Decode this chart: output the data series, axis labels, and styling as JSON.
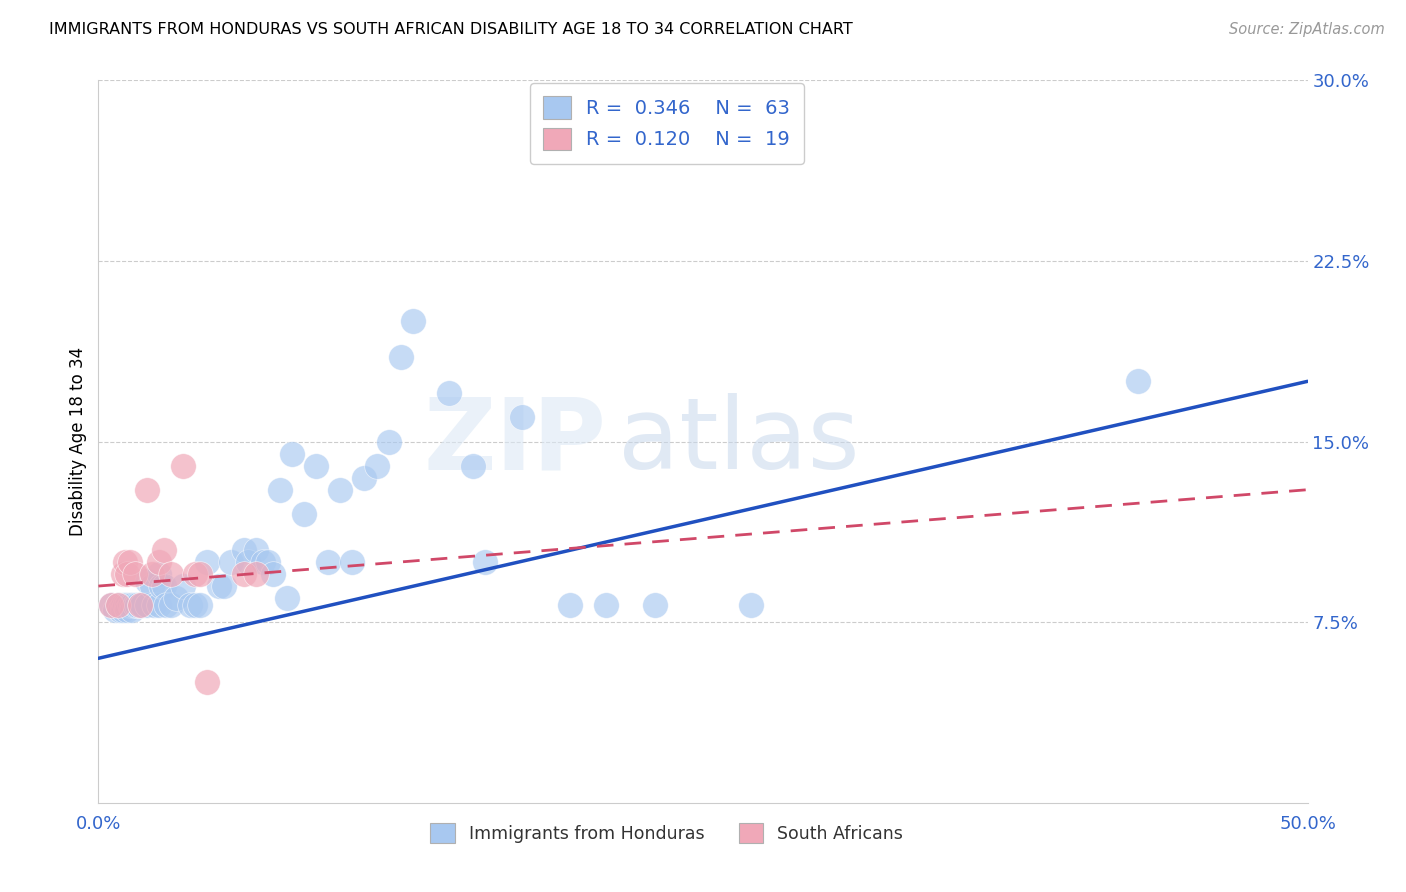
{
  "title": "IMMIGRANTS FROM HONDURAS VS SOUTH AFRICAN DISABILITY AGE 18 TO 34 CORRELATION CHART",
  "source": "Source: ZipAtlas.com",
  "ylabel": "Disability Age 18 to 34",
  "xlim": [
    0.0,
    0.5
  ],
  "ylim": [
    0.0,
    0.3
  ],
  "yticks": [
    0.075,
    0.15,
    0.225,
    0.3
  ],
  "yticklabels": [
    "7.5%",
    "15.0%",
    "22.5%",
    "30.0%"
  ],
  "legend1_R": "0.346",
  "legend1_N": "63",
  "legend2_R": "0.120",
  "legend2_N": "19",
  "blue_color": "#a8c8f0",
  "pink_color": "#f0a8b8",
  "line_blue": "#2050c0",
  "line_pink": "#d04868",
  "watermark_zip": "ZIP",
  "watermark_atlas": "atlas",
  "blue_scatter_x": [
    0.005,
    0.007,
    0.008,
    0.009,
    0.01,
    0.01,
    0.011,
    0.012,
    0.012,
    0.013,
    0.014,
    0.014,
    0.015,
    0.016,
    0.017,
    0.018,
    0.02,
    0.02,
    0.022,
    0.023,
    0.025,
    0.025,
    0.026,
    0.027,
    0.028,
    0.03,
    0.032,
    0.035,
    0.038,
    0.04,
    0.042,
    0.045,
    0.05,
    0.052,
    0.055,
    0.06,
    0.062,
    0.065,
    0.068,
    0.07,
    0.072,
    0.075,
    0.078,
    0.08,
    0.085,
    0.09,
    0.095,
    0.1,
    0.105,
    0.11,
    0.115,
    0.12,
    0.125,
    0.13,
    0.145,
    0.155,
    0.16,
    0.175,
    0.195,
    0.21,
    0.23,
    0.27,
    0.43
  ],
  "blue_scatter_y": [
    0.082,
    0.08,
    0.082,
    0.08,
    0.082,
    0.08,
    0.082,
    0.082,
    0.08,
    0.082,
    0.082,
    0.08,
    0.082,
    0.082,
    0.082,
    0.082,
    0.092,
    0.082,
    0.09,
    0.082,
    0.095,
    0.082,
    0.09,
    0.09,
    0.082,
    0.082,
    0.085,
    0.09,
    0.082,
    0.082,
    0.082,
    0.1,
    0.09,
    0.09,
    0.1,
    0.105,
    0.1,
    0.105,
    0.1,
    0.1,
    0.095,
    0.13,
    0.085,
    0.145,
    0.12,
    0.14,
    0.1,
    0.13,
    0.1,
    0.135,
    0.14,
    0.15,
    0.185,
    0.2,
    0.17,
    0.14,
    0.1,
    0.16,
    0.082,
    0.082,
    0.082,
    0.082,
    0.175
  ],
  "pink_scatter_x": [
    0.005,
    0.008,
    0.01,
    0.011,
    0.012,
    0.013,
    0.015,
    0.017,
    0.02,
    0.022,
    0.025,
    0.027,
    0.03,
    0.035,
    0.04,
    0.042,
    0.045,
    0.06,
    0.065
  ],
  "pink_scatter_y": [
    0.082,
    0.082,
    0.095,
    0.1,
    0.095,
    0.1,
    0.095,
    0.082,
    0.13,
    0.095,
    0.1,
    0.105,
    0.095,
    0.14,
    0.095,
    0.095,
    0.05,
    0.095,
    0.095
  ],
  "blue_line_x0": 0.0,
  "blue_line_y0": 0.06,
  "blue_line_x1": 0.5,
  "blue_line_y1": 0.175,
  "pink_line_x0": 0.0,
  "pink_line_y0": 0.09,
  "pink_line_x1": 0.5,
  "pink_line_y1": 0.13
}
